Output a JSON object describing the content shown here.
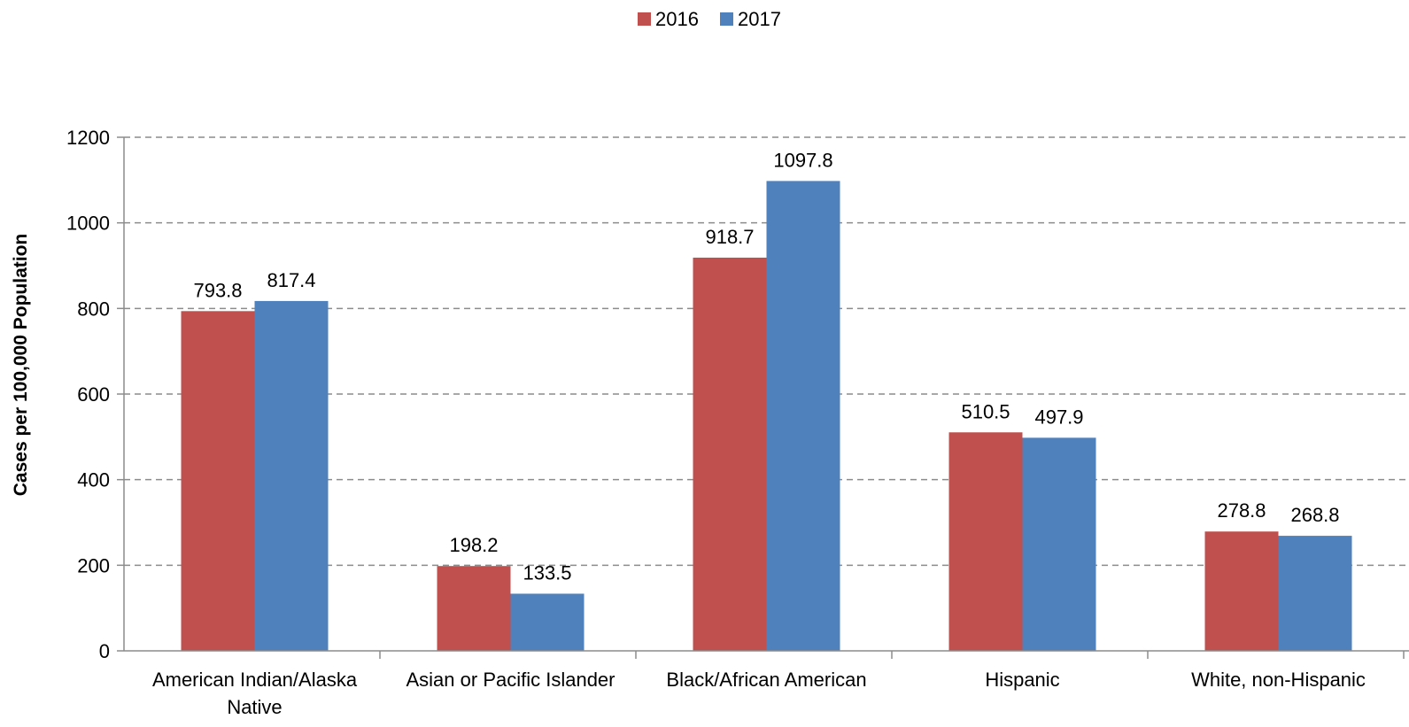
{
  "chart_data": {
    "type": "bar",
    "ylabel": "Cases per 100,000 Population",
    "xlabel": "",
    "ylim": [
      0,
      1200
    ],
    "yticks": [
      0,
      200,
      400,
      600,
      800,
      1000,
      1200
    ],
    "grid": true,
    "grid_style": "dashed",
    "legend_position": "top-center",
    "categories": [
      [
        "American Indian/Alaska",
        "Native"
      ],
      [
        "Asian or Pacific Islander"
      ],
      [
        "Black/African American"
      ],
      [
        "Hispanic"
      ],
      [
        "White, non-Hispanic"
      ]
    ],
    "series": [
      {
        "name": "2016",
        "color": "#c0504d",
        "values": [
          793.8,
          198.2,
          918.7,
          510.5,
          278.8
        ]
      },
      {
        "name": "2017",
        "color": "#4f81bd",
        "values": [
          817.4,
          133.5,
          1097.8,
          497.9,
          268.8
        ]
      }
    ]
  }
}
